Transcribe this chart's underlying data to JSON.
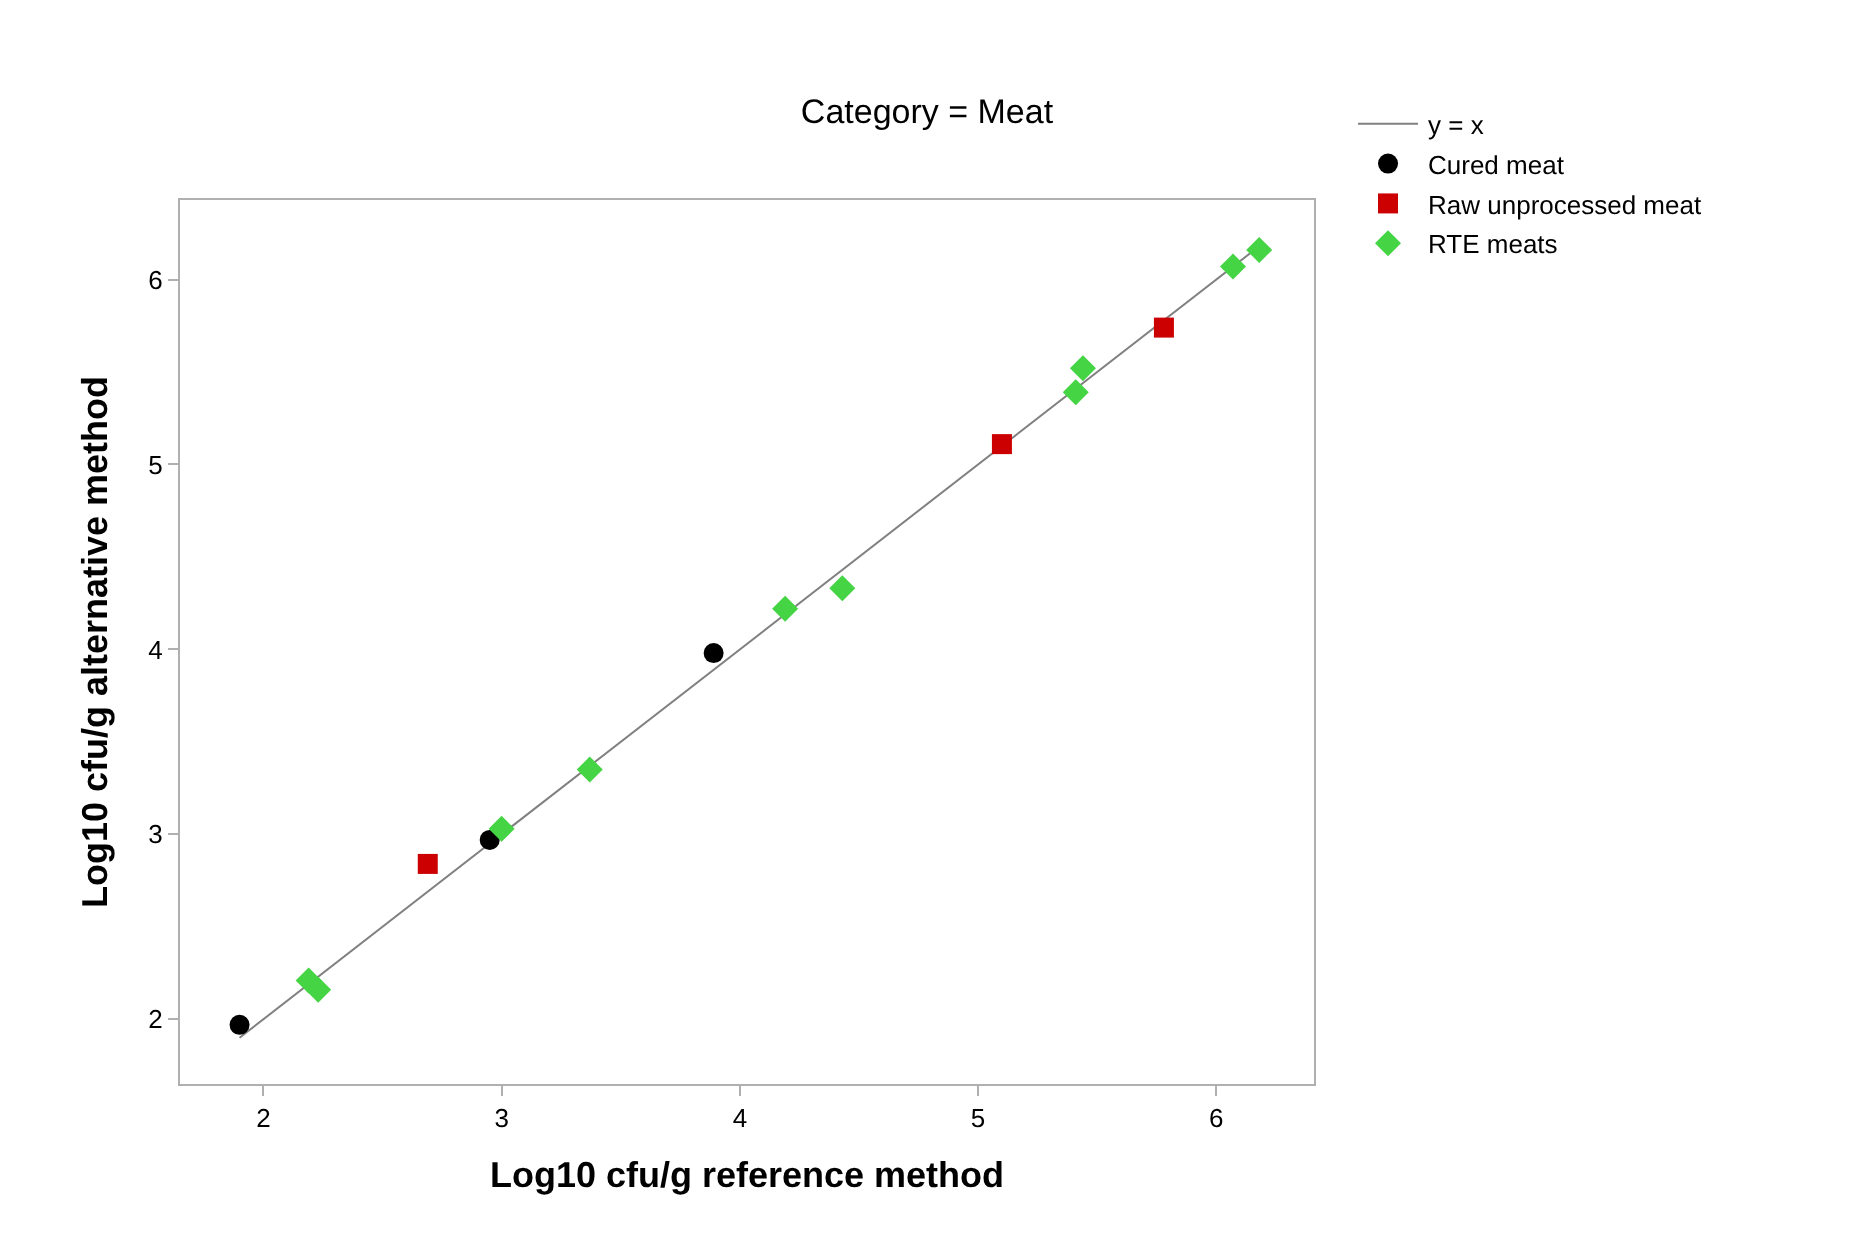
{
  "chart_data": {
    "type": "scatter",
    "title": "Category = Meat",
    "xlabel": "Log10 cfu/g reference method",
    "ylabel": "Log10 cfu/g alternative method",
    "xlim": [
      1.65,
      6.41
    ],
    "ylim": [
      1.65,
      6.43
    ],
    "xticks": [
      2,
      3,
      4,
      5,
      6
    ],
    "yticks": [
      2,
      3,
      4,
      5,
      6
    ],
    "legend": "top right",
    "series": [
      {
        "name": "y = x",
        "type": "line",
        "color": "#808080",
        "marker": "none",
        "line_style": "solid",
        "x": [
          1.9,
          6.18
        ],
        "values": [
          1.9,
          6.18
        ]
      },
      {
        "name": "Cured meat",
        "color": "#000000",
        "marker": "circle",
        "x": [
          1.9,
          2.95,
          3.89
        ],
        "values": [
          1.97,
          2.97,
          3.98
        ]
      },
      {
        "name": "Raw unprocessed meat",
        "color": "#cc0000",
        "marker": "square",
        "x": [
          2.69,
          5.1,
          5.78
        ],
        "values": [
          2.84,
          5.11,
          5.74
        ]
      },
      {
        "name": "RTE meats",
        "color": "#44d444",
        "marker": "diamond",
        "x": [
          2.19,
          2.23,
          3.0,
          3.37,
          4.19,
          4.43,
          5.41,
          5.44,
          6.07,
          6.18
        ],
        "values": [
          2.21,
          2.16,
          3.03,
          3.35,
          4.22,
          4.33,
          5.39,
          5.52,
          6.07,
          6.16
        ]
      }
    ]
  }
}
